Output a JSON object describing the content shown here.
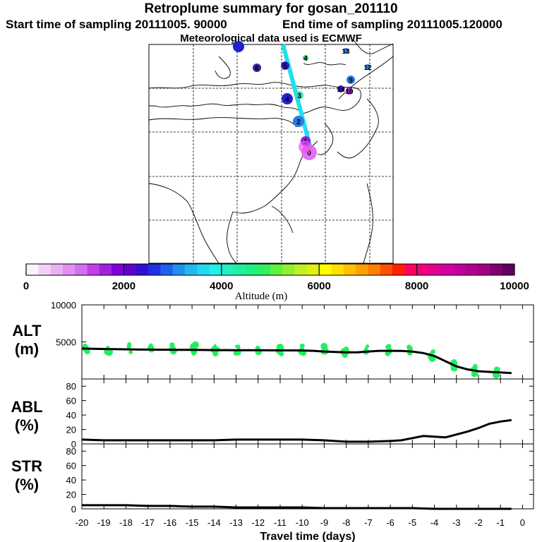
{
  "header": {
    "title": "Retroplume summary for gosan_201110",
    "start_label": "Start time of sampling 20111005. 90000",
    "end_label": "End time of sampling 20111005.120000",
    "met_label": "Meteorological data used is ECMWF"
  },
  "map": {
    "plume_color": "#1ee0ee",
    "track_points": [
      {
        "label": "0",
        "color": "#e070f0"
      },
      {
        "label": "1",
        "color": "#8a20e0"
      },
      {
        "label": "2",
        "color": "#2a7ae0"
      },
      {
        "label": "3",
        "color": "#40e0c0"
      },
      {
        "label": "4",
        "color": "#2020d0"
      },
      {
        "label": "4",
        "color": "#30e060"
      },
      {
        "label": "5",
        "color": "#2a20c0"
      },
      {
        "label": "6",
        "color": "#4020a0"
      },
      {
        "label": "9",
        "color": "#2a7ae0"
      },
      {
        "label": "10",
        "color": "#a020c0"
      },
      {
        "label": "12",
        "color": "#2a7ae0"
      },
      {
        "label": "13",
        "color": "#2a7ae0"
      },
      {
        "label": "14",
        "color": "#3020a0"
      }
    ]
  },
  "colorbar": {
    "colors": [
      "#fff0ff",
      "#f4d0f8",
      "#eab0f4",
      "#e090f0",
      "#d070ec",
      "#c040e8",
      "#a020e0",
      "#8000d8",
      "#6000c8",
      "#3010d0",
      "#2030e8",
      "#2060ee",
      "#2090f0",
      "#20b8f0",
      "#20d8f0",
      "#20f0e8",
      "#20f0c0",
      "#20f0a0",
      "#20f080",
      "#30f060",
      "#60f040",
      "#90f030",
      "#c0f020",
      "#e0f010",
      "#ffff00",
      "#ffe000",
      "#ffc000",
      "#ffa000",
      "#ff8000",
      "#ff5000",
      "#ff2000",
      "#ff0060",
      "#f00080",
      "#e00090",
      "#d000a0",
      "#c000a0",
      "#b00090",
      "#a00080",
      "#800070",
      "#600060"
    ],
    "tick_labels": [
      "0",
      "2000",
      "4000",
      "6000",
      "8000",
      "10000"
    ],
    "label": "Altitude (m)"
  },
  "panels": {
    "alt": {
      "label_line1": "ALT",
      "label_line2": "(m)"
    },
    "abl": {
      "label_line1": "ABL",
      "label_line2": "(%)"
    },
    "str": {
      "label_line1": "STR",
      "label_line2": "(%)"
    }
  },
  "chart_data": [
    {
      "type": "line",
      "title": "ALT (m)",
      "ylabel": "ALT (m)",
      "xlabel": "Travel time (days)",
      "ylim": [
        0,
        10000
      ],
      "yticks": [
        "10000",
        "5000"
      ],
      "x": [
        -20,
        -19.5,
        -19,
        -18.5,
        -18,
        -17.5,
        -17,
        -16.5,
        -16,
        -15.5,
        -15,
        -14.5,
        -14,
        -13.5,
        -13,
        -12.5,
        -12,
        -11.5,
        -11,
        -10.5,
        -10,
        -9.5,
        -9,
        -8.5,
        -8,
        -7.5,
        -7,
        -6.5,
        -6,
        -5.5,
        -5,
        -4.5,
        -4,
        -3.5,
        -3,
        -2.5,
        -2,
        -1.5,
        -1,
        -0.5
      ],
      "y": [
        4100,
        4080,
        4050,
        4020,
        4000,
        3980,
        3960,
        3950,
        3940,
        3930,
        3920,
        3910,
        3900,
        3900,
        3890,
        3880,
        3880,
        3870,
        3860,
        3860,
        3850,
        3800,
        3700,
        3650,
        3600,
        3600,
        3700,
        3800,
        3800,
        3780,
        3700,
        3500,
        3100,
        2400,
        1700,
        1300,
        1050,
        950,
        880,
        800
      ],
      "scatter_color": "#20f060"
    },
    {
      "type": "line",
      "title": "ABL (%)",
      "ylabel": "ABL (%)",
      "ylim": [
        0,
        90
      ],
      "yticks": [
        "80",
        "60",
        "40",
        "20",
        "0"
      ],
      "x": [
        -20,
        -19,
        -18,
        -17,
        -16,
        -15,
        -14,
        -13,
        -12,
        -11,
        -10,
        -9,
        -8,
        -7,
        -6,
        -5.5,
        -5,
        -4.5,
        -4,
        -3.5,
        -3,
        -2.5,
        -2,
        -1.5,
        -1,
        -0.5
      ],
      "y": [
        6,
        5,
        5,
        5,
        5,
        5,
        5,
        6,
        6,
        6,
        6,
        5,
        3,
        3,
        4,
        5,
        8,
        11,
        10,
        9,
        13,
        17,
        22,
        28,
        31,
        33
      ]
    },
    {
      "type": "line",
      "title": "STR (%)",
      "ylabel": "STR (%)",
      "ylim": [
        0,
        90
      ],
      "yticks": [
        "80",
        "60",
        "40",
        "20",
        "0"
      ],
      "x": [
        -20,
        -19,
        -18,
        -17,
        -16,
        -15,
        -14,
        -13,
        -12,
        -11,
        -10,
        -9,
        -8,
        -7,
        -6,
        -5,
        -4,
        -3,
        -2,
        -1,
        -0.5
      ],
      "y": [
        5,
        5,
        5,
        4,
        4,
        3,
        3,
        2,
        2,
        2,
        2,
        1,
        1,
        1,
        1,
        1,
        0,
        0,
        0,
        0,
        0
      ]
    }
  ],
  "xaxis": {
    "tick_labels": [
      "-20",
      "-19",
      "-18",
      "-17",
      "-16",
      "-15",
      "-14",
      "-13",
      "-12",
      "-11",
      "-10",
      "-9",
      "-8",
      "-7",
      "-6",
      "-5",
      "-4",
      "-3",
      "-2",
      "-1",
      "0"
    ],
    "label": "Travel time (days)"
  }
}
